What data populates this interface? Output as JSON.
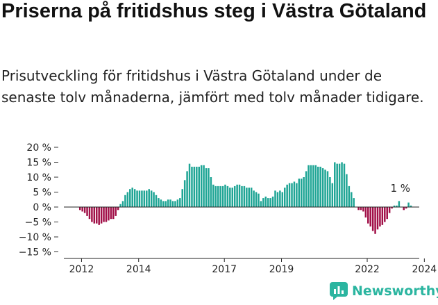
{
  "title": "Priserna på fritidshus steg i Västra Götaland",
  "subtitle": "Prisutveckling för fritidshus i Västra Götaland under de senaste tolv månaderna, jämfört med tolv månader tidigare.",
  "brand": {
    "name": "Newsworthy",
    "icon": "newsworthy-logo-icon"
  },
  "colors": {
    "positive": "#1fa595",
    "negative": "#a11048",
    "brand": "#2bb5a0"
  },
  "chart_data": {
    "type": "bar",
    "title": "Priserna på fritidshus steg i Västra Götaland",
    "ylim": [
      -15,
      20
    ],
    "y_ticks": [
      20,
      15,
      10,
      5,
      0,
      -5,
      -10,
      -15
    ],
    "y_tick_labels": [
      "20 %",
      "15 %",
      "10 %",
      "5 %",
      "0 %",
      "−5 %",
      "−10 %",
      "−15 %"
    ],
    "x_tick_labels": [
      "2012",
      "2014",
      "2017",
      "2019",
      "2022",
      "2024"
    ],
    "x_tick_positions": [
      2012.0,
      2014.0,
      2017.0,
      2019.0,
      2022.0,
      2024.0
    ],
    "grid": false,
    "start": "2011-12",
    "frequency": "monthly",
    "annotation": "1 %",
    "values": [
      -1,
      -1.5,
      -2,
      -3,
      -4,
      -5,
      -5.5,
      -5.5,
      -6,
      -5.5,
      -5,
      -5,
      -4.5,
      -4,
      -4,
      -3,
      -1,
      1,
      2,
      4,
      5,
      6,
      6.5,
      6,
      5.5,
      5.5,
      5.5,
      5.5,
      5.5,
      6,
      5.5,
      5,
      4,
      3,
      2.5,
      2,
      2,
      2.5,
      2.5,
      2,
      2,
      2.5,
      3,
      6,
      9,
      12,
      14.5,
      13.5,
      13.5,
      13.5,
      13.5,
      14,
      14,
      13,
      13,
      10,
      7.5,
      7,
      7,
      7,
      7,
      7.5,
      7,
      6.5,
      6.5,
      7,
      7.5,
      7.5,
      7,
      7,
      6.5,
      6.5,
      6.5,
      5.5,
      5,
      4.5,
      2,
      3,
      3.5,
      3,
      3,
      3.5,
      5.5,
      5,
      5.5,
      5,
      6.5,
      7.5,
      8,
      8,
      8.5,
      8,
      9.5,
      9.5,
      10,
      12,
      14,
      14,
      14,
      14,
      13.5,
      13.5,
      13,
      12.5,
      12,
      10,
      8,
      15,
      14.5,
      14.5,
      15,
      14.5,
      11,
      7,
      5,
      3,
      0,
      -1,
      -1,
      -1.5,
      -3.5,
      -5.5,
      -6.5,
      -8,
      -9,
      -7.5,
      -6.5,
      -6,
      -5,
      -4,
      -2,
      -0.5,
      0.5,
      0.5,
      2,
      0,
      -1,
      -0.5,
      1.5,
      0.5
    ]
  }
}
